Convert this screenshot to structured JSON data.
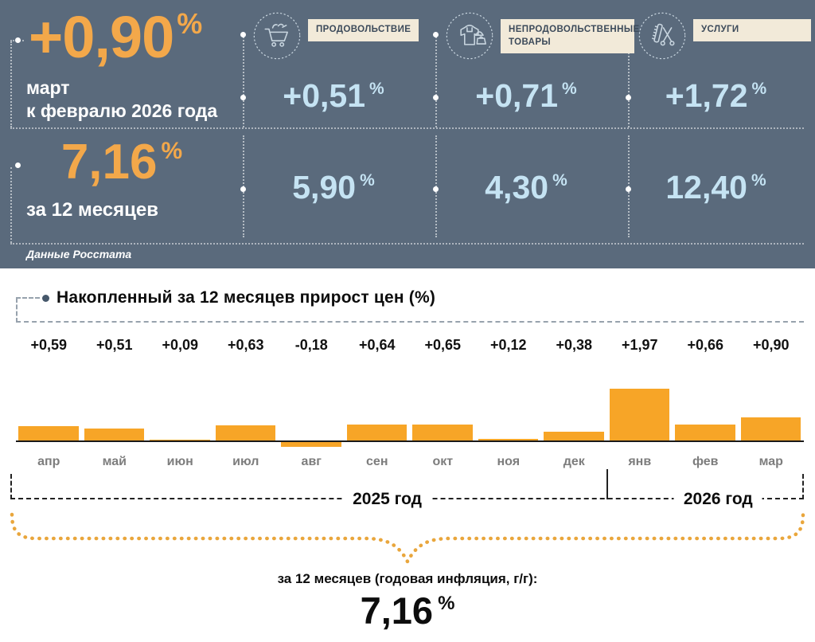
{
  "colors": {
    "panel_background": "#5A6A7C",
    "accent_orange": "#F3A84A",
    "value_light_blue": "#C5E3F3",
    "label_cream": "#F2EAD9",
    "bar_orange": "#F7A527",
    "brace_orange": "#E9A63C"
  },
  "percent_sign": "%",
  "header": {
    "main_stat": {
      "value": "+0,90",
      "period_line1": "март",
      "period_line2": "к февралю 2026 года"
    },
    "annual_stat": {
      "value": "7,16",
      "label": "за 12 месяцев"
    },
    "source": "Данные Росстата",
    "categories": [
      {
        "icon": "cart-icon",
        "label": "ПРОДОВОЛЬСТВИЕ",
        "monthly": "+0,51",
        "annual": "5,90"
      },
      {
        "icon": "clothes-icon",
        "label": "НЕПРОДОВОЛЬСТВЕННЫЕ ТОВАРЫ",
        "monthly": "+0,71",
        "annual": "4,30"
      },
      {
        "icon": "scissors-comb-icon",
        "label": "УСЛУГИ",
        "monthly": "+1,72",
        "annual": "12,40"
      }
    ]
  },
  "chart_data": {
    "type": "bar",
    "title": "Накопленный за 12 месяцев прирост цен (%)",
    "categories": [
      "апр",
      "май",
      "июн",
      "июл",
      "авг",
      "сен",
      "окт",
      "ноя",
      "дек",
      "янв",
      "фев",
      "мар"
    ],
    "values": [
      0.59,
      0.51,
      0.09,
      0.63,
      -0.18,
      0.64,
      0.65,
      0.12,
      0.38,
      1.97,
      0.66,
      0.9
    ],
    "value_labels": [
      "+0,59",
      "+0,51",
      "+0,09",
      "+0,63",
      "-0,18",
      "+0,64",
      "+0,65",
      "+0,12",
      "+0,38",
      "+1,97",
      "+0,66",
      "+0,90"
    ],
    "bar_color": "#F7A527",
    "baseline": 0,
    "ylim": [
      -0.3,
      2.1
    ],
    "grid": false,
    "year_groups": [
      {
        "label": "2025 год",
        "months": 9
      },
      {
        "label": "2026 год",
        "months": 3
      }
    ]
  },
  "footer": {
    "caption": "за 12 месяцев (годовая инфляция, г/г):",
    "value": "7,16"
  }
}
